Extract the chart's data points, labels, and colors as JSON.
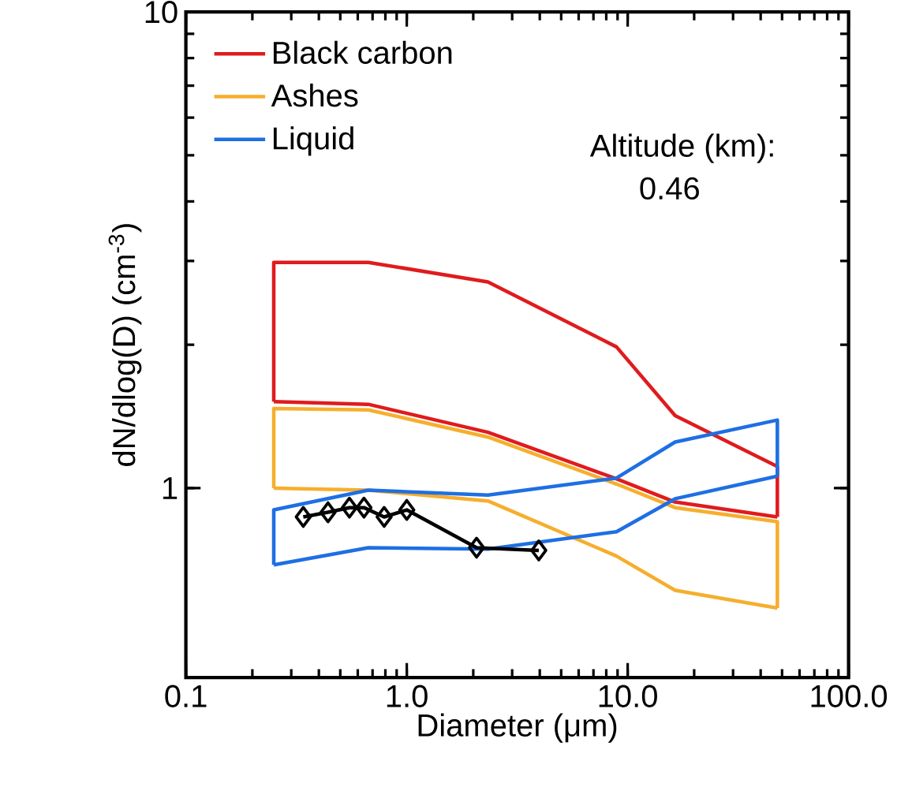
{
  "chart_data": {
    "type": "line",
    "xlabel": "Diameter (μm)",
    "ylabel": "dN/dlog(D) (cm$^{-3}$)",
    "log": "xy",
    "legend": "top left",
    "xlim": [
      0.1,
      100
    ],
    "ylim": [
      0.4,
      10
    ],
    "xticks": [
      {
        "value": 0.1,
        "label": "0.1"
      },
      {
        "value": 1,
        "label": "1.0"
      },
      {
        "value": 10,
        "label": "10.0"
      },
      {
        "value": 100,
        "label": "100.0"
      }
    ],
    "yticks": [
      1,
      10
    ],
    "annotations": [
      "Altitude (km):",
      "0.46"
    ],
    "series": [
      {
        "name": "Black carbon",
        "color": "#e01b1d",
        "marker": "none",
        "x": [
          0.25,
          0.25,
          0.67,
          2.33,
          8.9,
          16.4,
          47.6,
          47.6
        ],
        "values": [
          1.52,
          2.98,
          2.98,
          2.71,
          1.98,
          1.42,
          1.11,
          0.87
        ]
      },
      {
        "color": "#e01b1d",
        "marker": "none",
        "x": [
          0.25,
          0.67,
          2.33,
          8.9,
          16.4,
          47.6
        ],
        "values": [
          1.52,
          1.5,
          1.31,
          1.046,
          0.935,
          0.87
        ]
      },
      {
        "name": "Ashes",
        "color": "#f6ae2d",
        "marker": "none",
        "x": [
          0.25,
          0.25,
          0.67,
          2.33,
          8.9,
          16.4,
          47.6,
          47.6
        ],
        "values": [
          1.0,
          1.47,
          1.46,
          1.28,
          1.02,
          0.91,
          0.85,
          0.56
        ]
      },
      {
        "color": "#f6ae2d",
        "marker": "none",
        "x": [
          0.25,
          0.67,
          2.33,
          8.9,
          16.4,
          47.6
        ],
        "values": [
          1.0,
          0.99,
          0.94,
          0.72,
          0.61,
          0.56
        ]
      },
      {
        "name": "Liquid",
        "color": "#1e6fe3",
        "marker": "none",
        "x": [
          0.25,
          0.25,
          0.67,
          2.33,
          8.9,
          16.4,
          47.6,
          47.6
        ],
        "values": [
          0.69,
          0.9,
          0.99,
          0.967,
          1.05,
          1.25,
          1.39,
          1.06
        ]
      },
      {
        "color": "#1e6fe3",
        "marker": "none",
        "x": [
          0.25,
          0.67,
          2.33,
          8.9,
          16.4,
          47.6
        ],
        "values": [
          0.69,
          0.75,
          0.745,
          0.81,
          0.95,
          1.06
        ]
      },
      {
        "color": "#000000",
        "marker": "diamond",
        "x": [
          0.34,
          0.44,
          0.55,
          0.64,
          0.79,
          1.0,
          2.07,
          3.96
        ],
        "values": [
          0.87,
          0.89,
          0.91,
          0.91,
          0.87,
          0.9,
          0.75,
          0.74
        ]
      }
    ]
  }
}
